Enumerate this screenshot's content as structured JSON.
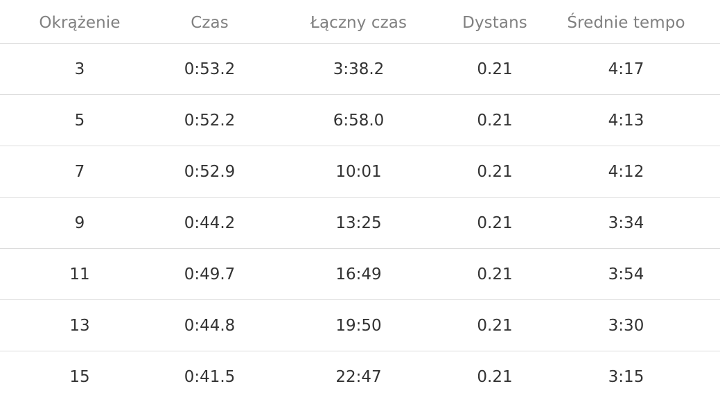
{
  "table": {
    "headers": [
      "Okrążenie",
      "Czas",
      "Łączny czas",
      "Dystans",
      "Średnie tempo"
    ],
    "rows": [
      {
        "lap": "3",
        "time": "0:53.2",
        "total": "3:38.2",
        "distance": "0.21",
        "pace": "4:17"
      },
      {
        "lap": "5",
        "time": "0:52.2",
        "total": "6:58.0",
        "distance": "0.21",
        "pace": "4:13"
      },
      {
        "lap": "7",
        "time": "0:52.9",
        "total": "10:01",
        "distance": "0.21",
        "pace": "4:12"
      },
      {
        "lap": "9",
        "time": "0:44.2",
        "total": "13:25",
        "distance": "0.21",
        "pace": "3:34"
      },
      {
        "lap": "11",
        "time": "0:49.7",
        "total": "16:49",
        "distance": "0.21",
        "pace": "3:54"
      },
      {
        "lap": "13",
        "time": "0:44.8",
        "total": "19:50",
        "distance": "0.21",
        "pace": "3:30"
      },
      {
        "lap": "15",
        "time": "0:41.5",
        "total": "22:47",
        "distance": "0.21",
        "pace": "3:15"
      }
    ]
  }
}
